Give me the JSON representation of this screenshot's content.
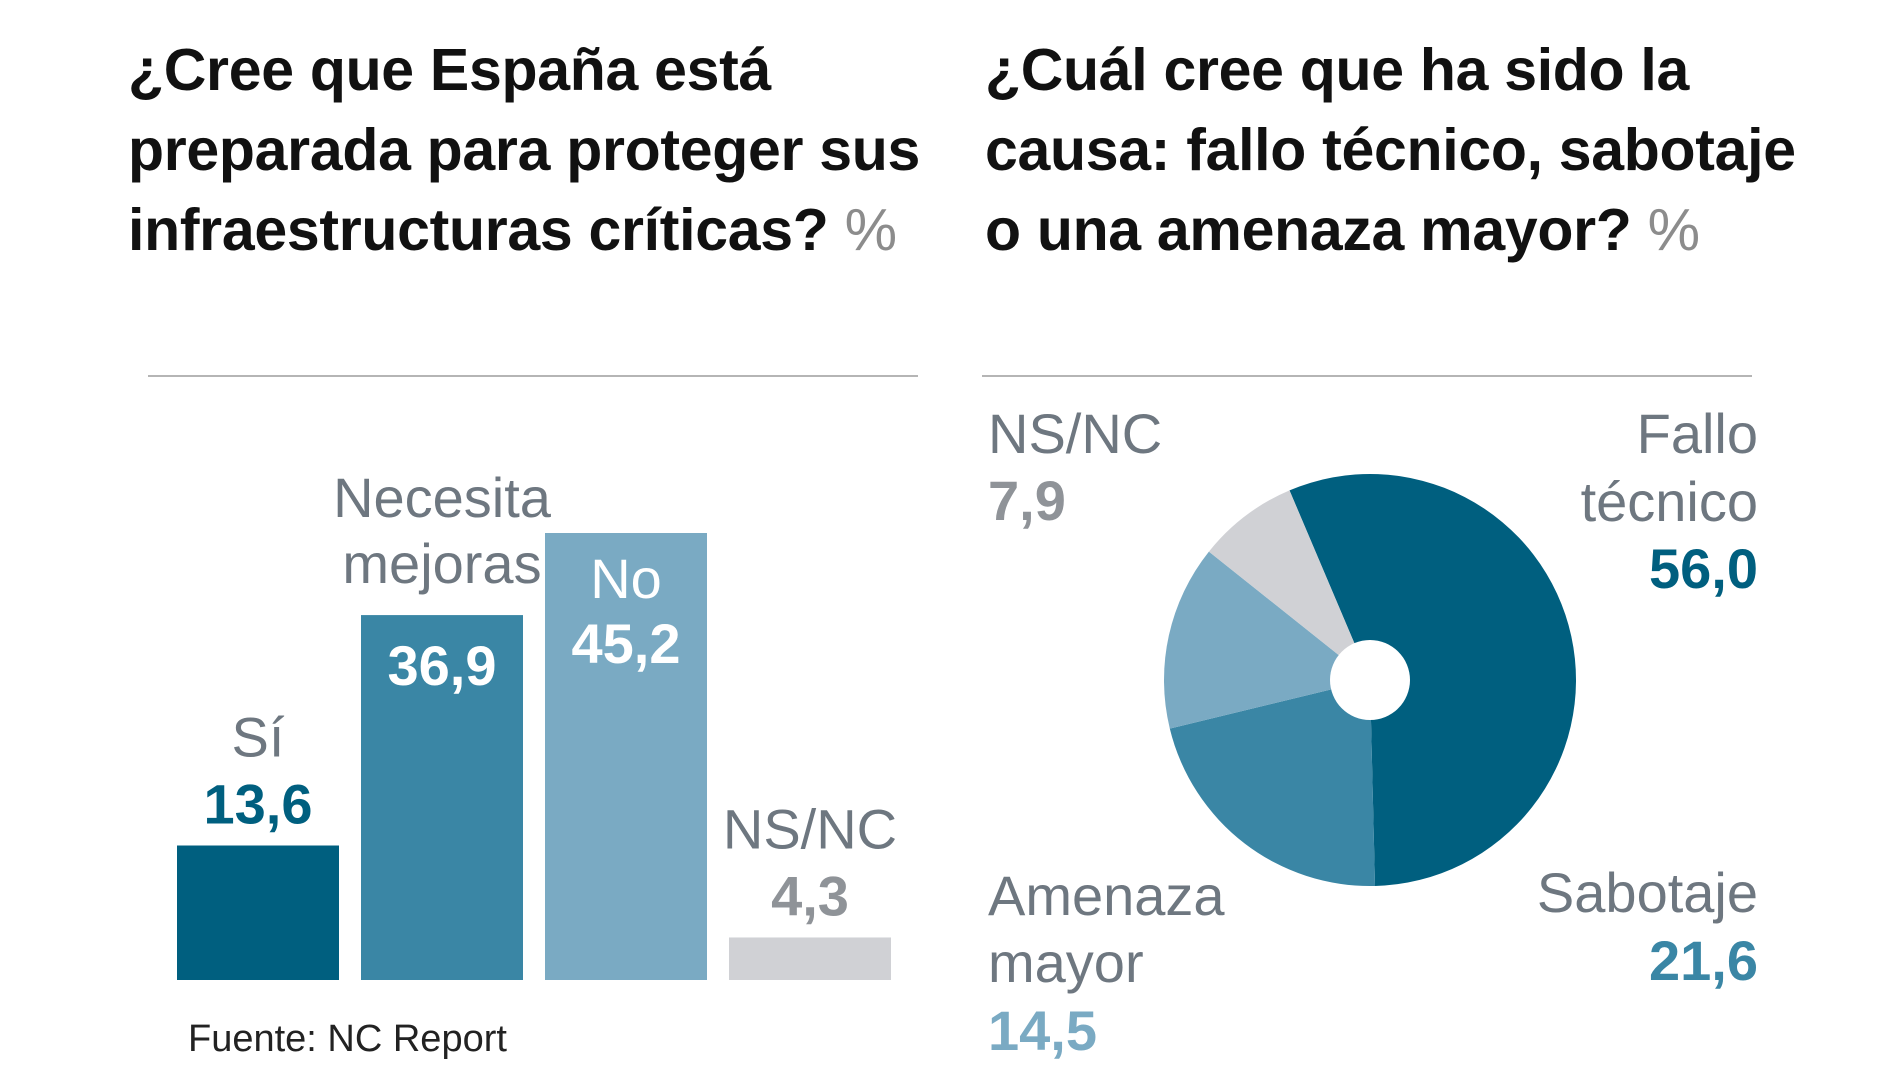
{
  "colors": {
    "dark": "#005f7f",
    "mid": "#3a86a5",
    "light": "#7aaac3",
    "gray": "#d0d1d5",
    "label_gray": "#6e7780",
    "value_gray": "#8f9398"
  },
  "source": "Fuente: NC Report",
  "chart_data": [
    {
      "type": "bar",
      "title": "¿Cree que España está preparada para proteger sus infraestructuras críticas?",
      "unit": "%",
      "categories": [
        "Sí",
        "Necesita mejoras",
        "No",
        "NS/NC"
      ],
      "values": [
        13.6,
        36.9,
        45.2,
        4.3
      ],
      "value_labels": [
        "13,6",
        "36,9",
        "45,2",
        "4,3"
      ],
      "label_lines": [
        [
          "Sí"
        ],
        [
          "Necesita",
          "mejoras"
        ],
        [
          "No"
        ],
        [
          "NS/NC"
        ]
      ],
      "ylim": [
        0,
        45.2
      ]
    },
    {
      "type": "pie",
      "title": "¿Cuál cree que ha sido la causa: fallo técnico, sabotaje o una amenaza mayor?",
      "unit": "%",
      "categories": [
        "Fallo técnico",
        "Sabotaje",
        "Amenaza mayor",
        "NS/NC"
      ],
      "values": [
        56.0,
        21.6,
        14.5,
        7.9
      ],
      "value_labels": [
        "56,0",
        "21,6",
        "14,5",
        "7,9"
      ],
      "label_lines": [
        [
          "Fallo",
          "técnico"
        ],
        [
          "Sabotaje"
        ],
        [
          "Amenaza",
          "mayor"
        ],
        [
          "NS/NC"
        ]
      ]
    }
  ]
}
